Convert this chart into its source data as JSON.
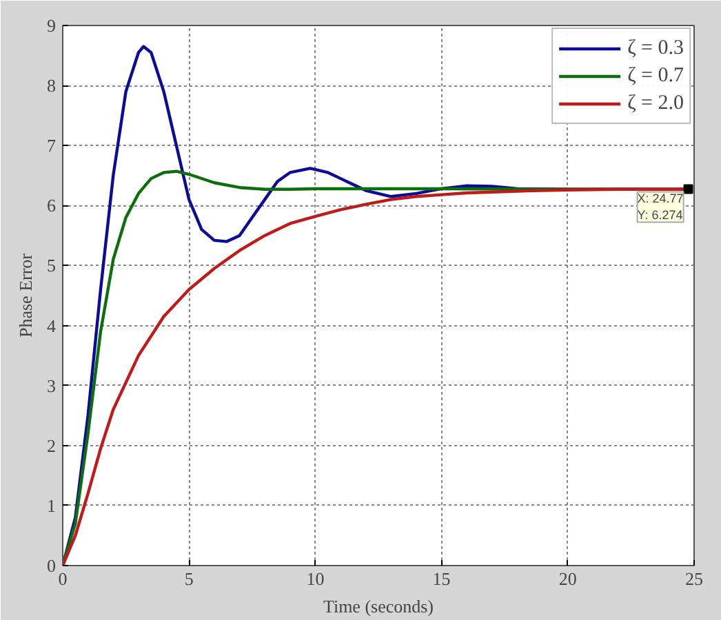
{
  "chart_data": {
    "type": "line",
    "xlabel": "Time (seconds)",
    "ylabel": "Phase Error",
    "xlim": [
      0,
      25
    ],
    "ylim": [
      0,
      9
    ],
    "xticks": [
      0,
      5,
      10,
      15,
      20,
      25
    ],
    "yticks": [
      0,
      1,
      2,
      3,
      4,
      5,
      6,
      7,
      8,
      9
    ],
    "grid": true,
    "legend": "top right",
    "line_style": "solid",
    "series": [
      {
        "name": "ζ = 0.3",
        "color": "#0c0c98",
        "x": [
          0,
          0.5,
          1,
          1.5,
          2,
          2.5,
          3,
          3.2,
          3.5,
          4,
          4.5,
          5,
          5.5,
          6,
          6.5,
          7,
          7.5,
          8,
          8.5,
          9,
          9.8,
          10.5,
          11,
          12,
          13,
          14,
          15,
          16,
          17,
          18,
          20,
          24.77
        ],
        "values": [
          0,
          0.8,
          2.5,
          4.6,
          6.5,
          7.9,
          8.55,
          8.65,
          8.55,
          7.9,
          7.0,
          6.1,
          5.6,
          5.42,
          5.4,
          5.5,
          5.8,
          6.1,
          6.4,
          6.55,
          6.62,
          6.55,
          6.45,
          6.25,
          6.15,
          6.2,
          6.28,
          6.33,
          6.32,
          6.28,
          6.27,
          6.27
        ]
      },
      {
        "name": "ζ = 0.7",
        "color": "#0c6e0c",
        "x": [
          0,
          0.5,
          1,
          1.5,
          2,
          2.5,
          3,
          3.5,
          4,
          4.5,
          5,
          6,
          7,
          8,
          9,
          10,
          12,
          15,
          20,
          24.77
        ],
        "values": [
          0,
          0.7,
          2.2,
          3.9,
          5.1,
          5.8,
          6.2,
          6.45,
          6.55,
          6.57,
          6.52,
          6.38,
          6.3,
          6.27,
          6.27,
          6.28,
          6.28,
          6.28,
          6.27,
          6.27
        ]
      },
      {
        "name": "ζ = 2.0",
        "color": "#c01a1a",
        "x": [
          0,
          0.5,
          1,
          1.5,
          2,
          3,
          4,
          5,
          6,
          7,
          8,
          9,
          10,
          11,
          12,
          13,
          14,
          15,
          16,
          18,
          20,
          22,
          24.77
        ],
        "values": [
          0,
          0.5,
          1.2,
          1.95,
          2.6,
          3.5,
          4.15,
          4.6,
          4.95,
          5.25,
          5.5,
          5.7,
          5.82,
          5.93,
          6.02,
          6.1,
          6.15,
          6.18,
          6.21,
          6.24,
          6.26,
          6.27,
          6.27
        ]
      }
    ],
    "annotations": [
      {
        "text": "X: 24.77\nY: 6.274",
        "x": 24.77,
        "y": 6.274
      }
    ]
  }
}
